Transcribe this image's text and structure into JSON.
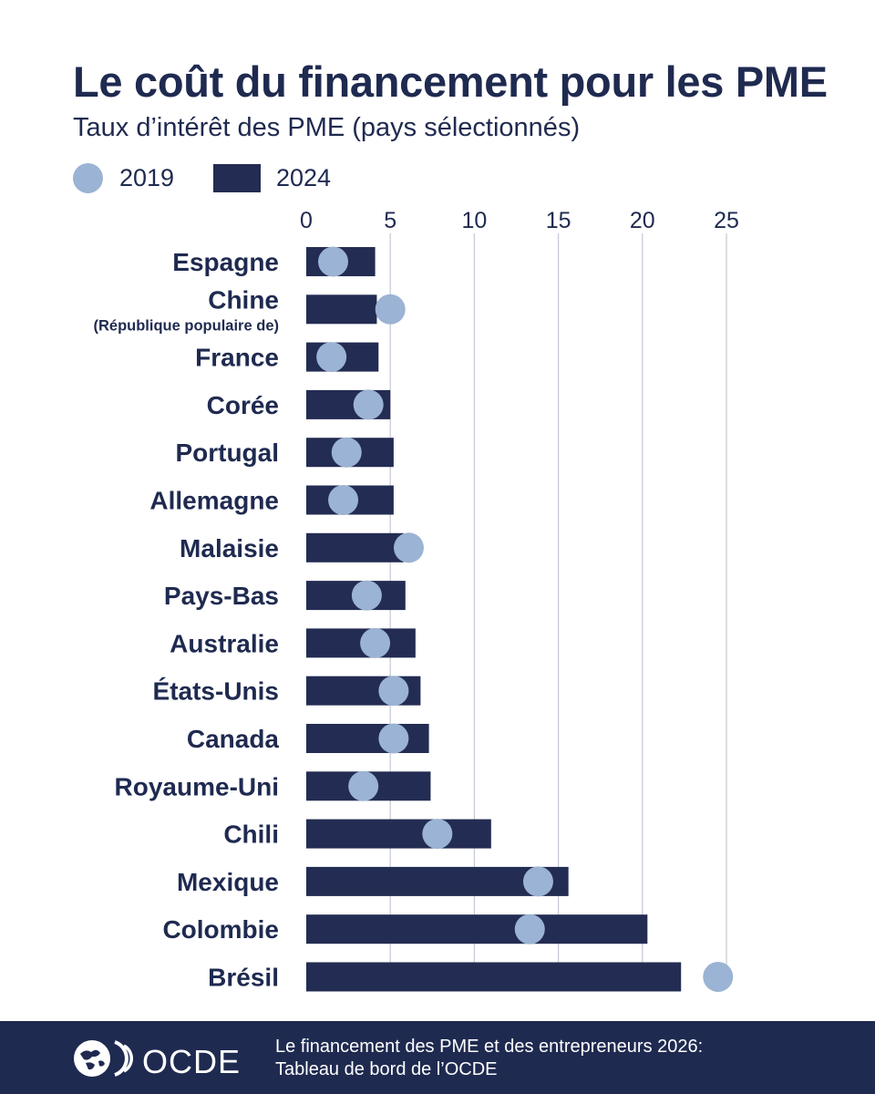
{
  "header": {
    "title": "Le coût du financement pour les PME",
    "subtitle": "Taux d’intérêt des PME (pays sélectionnés)"
  },
  "legend": {
    "series_2019": "2019",
    "series_2024": "2024"
  },
  "colors": {
    "bar_2024": "#232c52",
    "dot_2019": "#9bb3d4",
    "text": "#1f2a50",
    "gridline": "#c7cbd6",
    "footer_bg": "#1f2a50"
  },
  "chart_data": {
    "type": "bar",
    "orientation": "horizontal",
    "xlim": [
      0,
      25
    ],
    "x_ticks": [
      "0",
      "5",
      "10",
      "15",
      "20",
      "25"
    ],
    "x_tick_values": [
      0,
      5,
      10,
      15,
      20,
      25
    ],
    "grid": true,
    "legend_position": "top-left",
    "categories": [
      {
        "name": "Espagne",
        "sub": ""
      },
      {
        "name": "Chine",
        "sub": "(République populaire de)"
      },
      {
        "name": "France",
        "sub": ""
      },
      {
        "name": "Corée",
        "sub": ""
      },
      {
        "name": "Portugal",
        "sub": ""
      },
      {
        "name": "Allemagne",
        "sub": ""
      },
      {
        "name": "Malaisie",
        "sub": ""
      },
      {
        "name": "Pays-Bas",
        "sub": ""
      },
      {
        "name": "Australie",
        "sub": ""
      },
      {
        "name": "États-Unis",
        "sub": ""
      },
      {
        "name": "Canada",
        "sub": ""
      },
      {
        "name": "Royaume-Uni",
        "sub": ""
      },
      {
        "name": "Chili",
        "sub": ""
      },
      {
        "name": "Mexique",
        "sub": ""
      },
      {
        "name": "Colombie",
        "sub": ""
      },
      {
        "name": "Brésil",
        "sub": ""
      }
    ],
    "series": [
      {
        "name": "2024",
        "mark": "bar",
        "values": [
          4.1,
          4.2,
          4.3,
          5.0,
          5.2,
          5.2,
          5.8,
          5.9,
          6.5,
          6.8,
          7.3,
          7.4,
          11.0,
          15.6,
          20.3,
          22.3
        ]
      },
      {
        "name": "2019",
        "mark": "dot",
        "values": [
          1.6,
          5.0,
          1.5,
          3.7,
          2.4,
          2.2,
          6.1,
          3.6,
          4.1,
          5.2,
          5.2,
          3.4,
          7.8,
          13.8,
          13.3,
          24.5
        ]
      }
    ]
  },
  "footer": {
    "logo_text": "OCDE",
    "source_line1": "Le financement des PME et des entrepreneurs 2026:",
    "source_line2": "Tableau de bord de l’OCDE"
  }
}
